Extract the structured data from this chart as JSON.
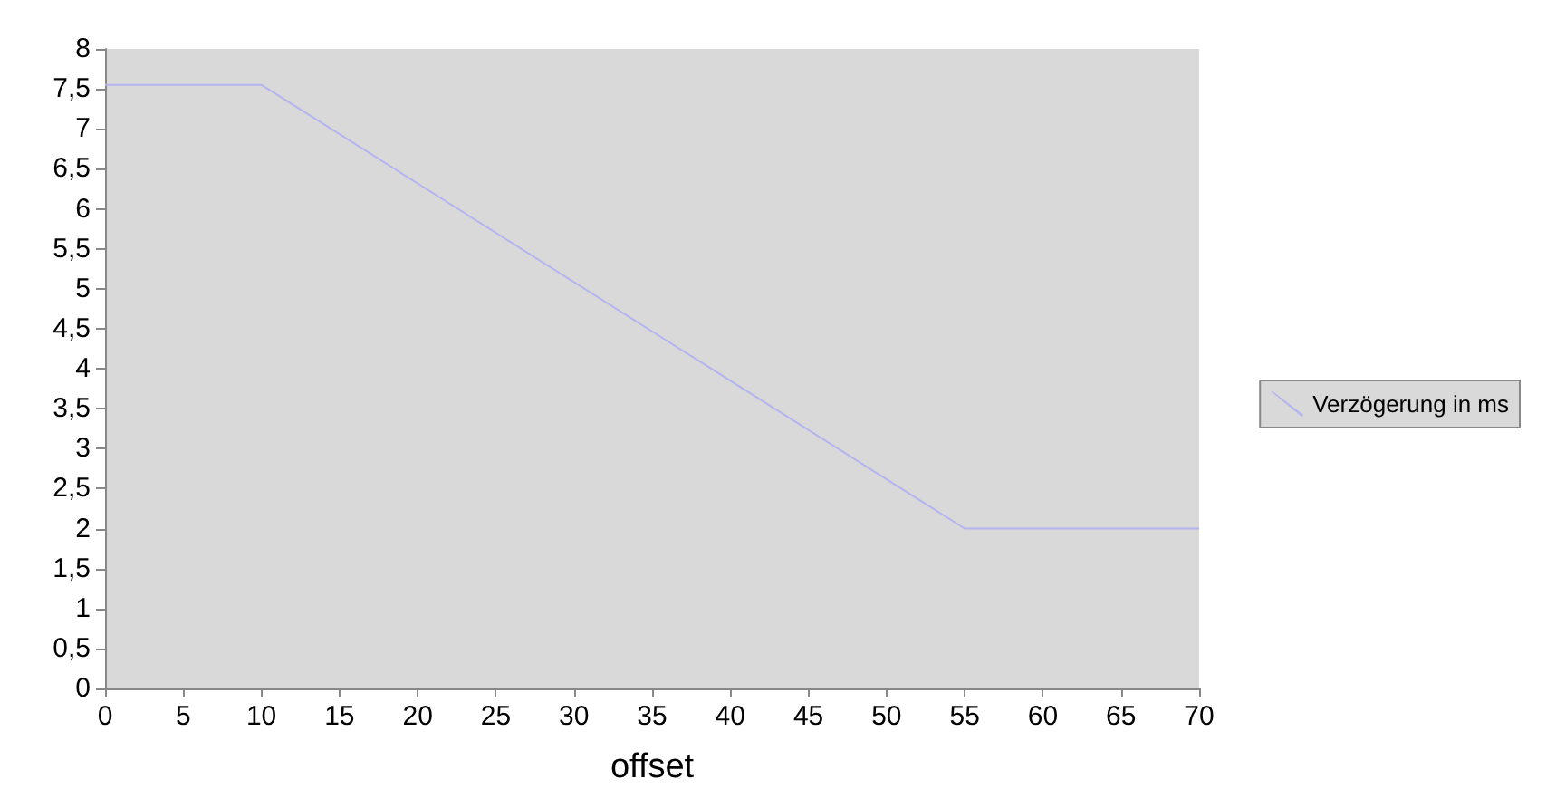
{
  "chart_data": {
    "type": "line",
    "xlabel": "offset",
    "x": [
      0,
      10,
      55,
      70
    ],
    "series": [
      {
        "name": "Verzögerung in ms",
        "color": "#b4b4f0",
        "values": [
          7.55,
          7.55,
          2,
          2
        ]
      }
    ],
    "xlim": [
      0,
      70
    ],
    "xticks": [
      0,
      5,
      10,
      15,
      20,
      25,
      30,
      35,
      40,
      45,
      50,
      55,
      60,
      65,
      70
    ],
    "ylim": [
      0,
      8
    ],
    "yticks": [
      0,
      {
        "value": 0.5,
        "label": "0,5"
      },
      1,
      {
        "value": 1.5,
        "label": "1,5"
      },
      2,
      {
        "value": 2.5,
        "label": "2,5"
      },
      3,
      {
        "value": 3.5,
        "label": "3,5"
      },
      4,
      {
        "value": 4.5,
        "label": "4,5"
      },
      5,
      {
        "value": 5.5,
        "label": "5,5"
      },
      6,
      {
        "value": 6.5,
        "label": "6,5"
      },
      7,
      {
        "value": 7.5,
        "label": "7,5"
      },
      8
    ],
    "grid": false,
    "legend": "right",
    "marker": "none",
    "line_style": "solid"
  }
}
